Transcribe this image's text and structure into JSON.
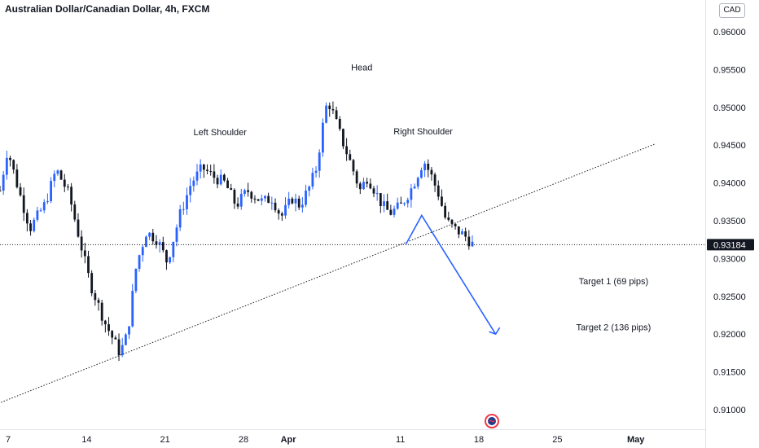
{
  "header": {
    "title": "Australian Dollar/Canadian Dollar, 4h, FXCM",
    "currency_button": "CAD"
  },
  "chart_data": {
    "type": "candlestick",
    "symbol": "AUDCAD",
    "timeframe": "4h",
    "source": "FXCM",
    "ylim": [
      0.907,
      0.964
    ],
    "y_ticks": [
      "0.96000",
      "0.95500",
      "0.95000",
      "0.94500",
      "0.94000",
      "0.93500",
      "0.93000",
      "0.92500",
      "0.92000",
      "0.91500",
      "0.91000"
    ],
    "y_tick_values": [
      0.96,
      0.955,
      0.95,
      0.945,
      0.94,
      0.935,
      0.93,
      0.925,
      0.92,
      0.915,
      0.91
    ],
    "x_ticks": [
      {
        "label": "7",
        "bold": false
      },
      {
        "label": "14",
        "bold": false
      },
      {
        "label": "21",
        "bold": false
      },
      {
        "label": "28",
        "bold": false
      },
      {
        "label": "Apr",
        "bold": true
      },
      {
        "label": "11",
        "bold": false
      },
      {
        "label": "18",
        "bold": false
      },
      {
        "label": "25",
        "bold": false
      },
      {
        "label": "May",
        "bold": true
      }
    ],
    "current_price": 0.93184,
    "current_price_label": "0.93184",
    "trendline": {
      "from": [
        -0.6,
        0.9107
      ],
      "to": [
        93,
        0.9452
      ]
    },
    "projection": [
      [
        6.2,
        0.9319
      ],
      [
        9.0,
        0.9357
      ],
      [
        11.7,
        0.92
      ]
    ],
    "projection_color": "#2962ff",
    "annotations": [
      {
        "text": "Head",
        "x": 51.3,
        "y": 0.9549
      },
      {
        "text": "Left Shoulder",
        "x": 31.2,
        "y": 0.9463
      },
      {
        "text": "Right Shoulder",
        "x": 60.0,
        "y": 0.9464
      },
      {
        "text": "Target 1 (69 pips)",
        "x": 87.0,
        "y": 0.9266
      },
      {
        "text": "Target 2 (136 pips)",
        "x": 87.0,
        "y": 0.9205
      }
    ],
    "waypoints": [
      [
        0,
        0.939
      ],
      [
        1,
        0.9445
      ],
      [
        2.5,
        0.939
      ],
      [
        4,
        0.934
      ],
      [
        6,
        0.9372
      ],
      [
        7.5,
        0.9418
      ],
      [
        9.2,
        0.9385
      ],
      [
        10.5,
        0.933
      ],
      [
        12,
        0.9268
      ],
      [
        14,
        0.9215
      ],
      [
        16,
        0.9175
      ],
      [
        17,
        0.92
      ],
      [
        18.2,
        0.9292
      ],
      [
        19.5,
        0.9335
      ],
      [
        21,
        0.9325
      ],
      [
        22.3,
        0.9295
      ],
      [
        24,
        0.9358
      ],
      [
        25.5,
        0.94
      ],
      [
        27,
        0.942
      ],
      [
        28.5,
        0.9408
      ],
      [
        30,
        0.94
      ],
      [
        31.5,
        0.937
      ],
      [
        33,
        0.939
      ],
      [
        35,
        0.9375
      ],
      [
        36.3,
        0.938
      ],
      [
        37.5,
        0.9355
      ],
      [
        39,
        0.938
      ],
      [
        40,
        0.937
      ],
      [
        41.3,
        0.9395
      ],
      [
        42.2,
        0.942
      ],
      [
        43.2,
        0.9485
      ],
      [
        43.7,
        0.951
      ],
      [
        44.5,
        0.949
      ],
      [
        45.5,
        0.946
      ],
      [
        47,
        0.942
      ],
      [
        48,
        0.939
      ],
      [
        49,
        0.9408
      ],
      [
        50,
        0.939
      ],
      [
        51,
        0.937
      ],
      [
        52,
        0.936
      ],
      [
        53.5,
        0.937
      ],
      [
        55,
        0.9395
      ],
      [
        56.5,
        0.943
      ],
      [
        57.5,
        0.941
      ],
      [
        58.5,
        0.9385
      ],
      [
        59.5,
        0.935
      ],
      [
        60.5,
        0.934
      ],
      [
        62,
        0.933
      ],
      [
        63,
        0.9319
      ]
    ],
    "candle_up_color": "#2962ff",
    "candle_down_color": "#131722"
  }
}
